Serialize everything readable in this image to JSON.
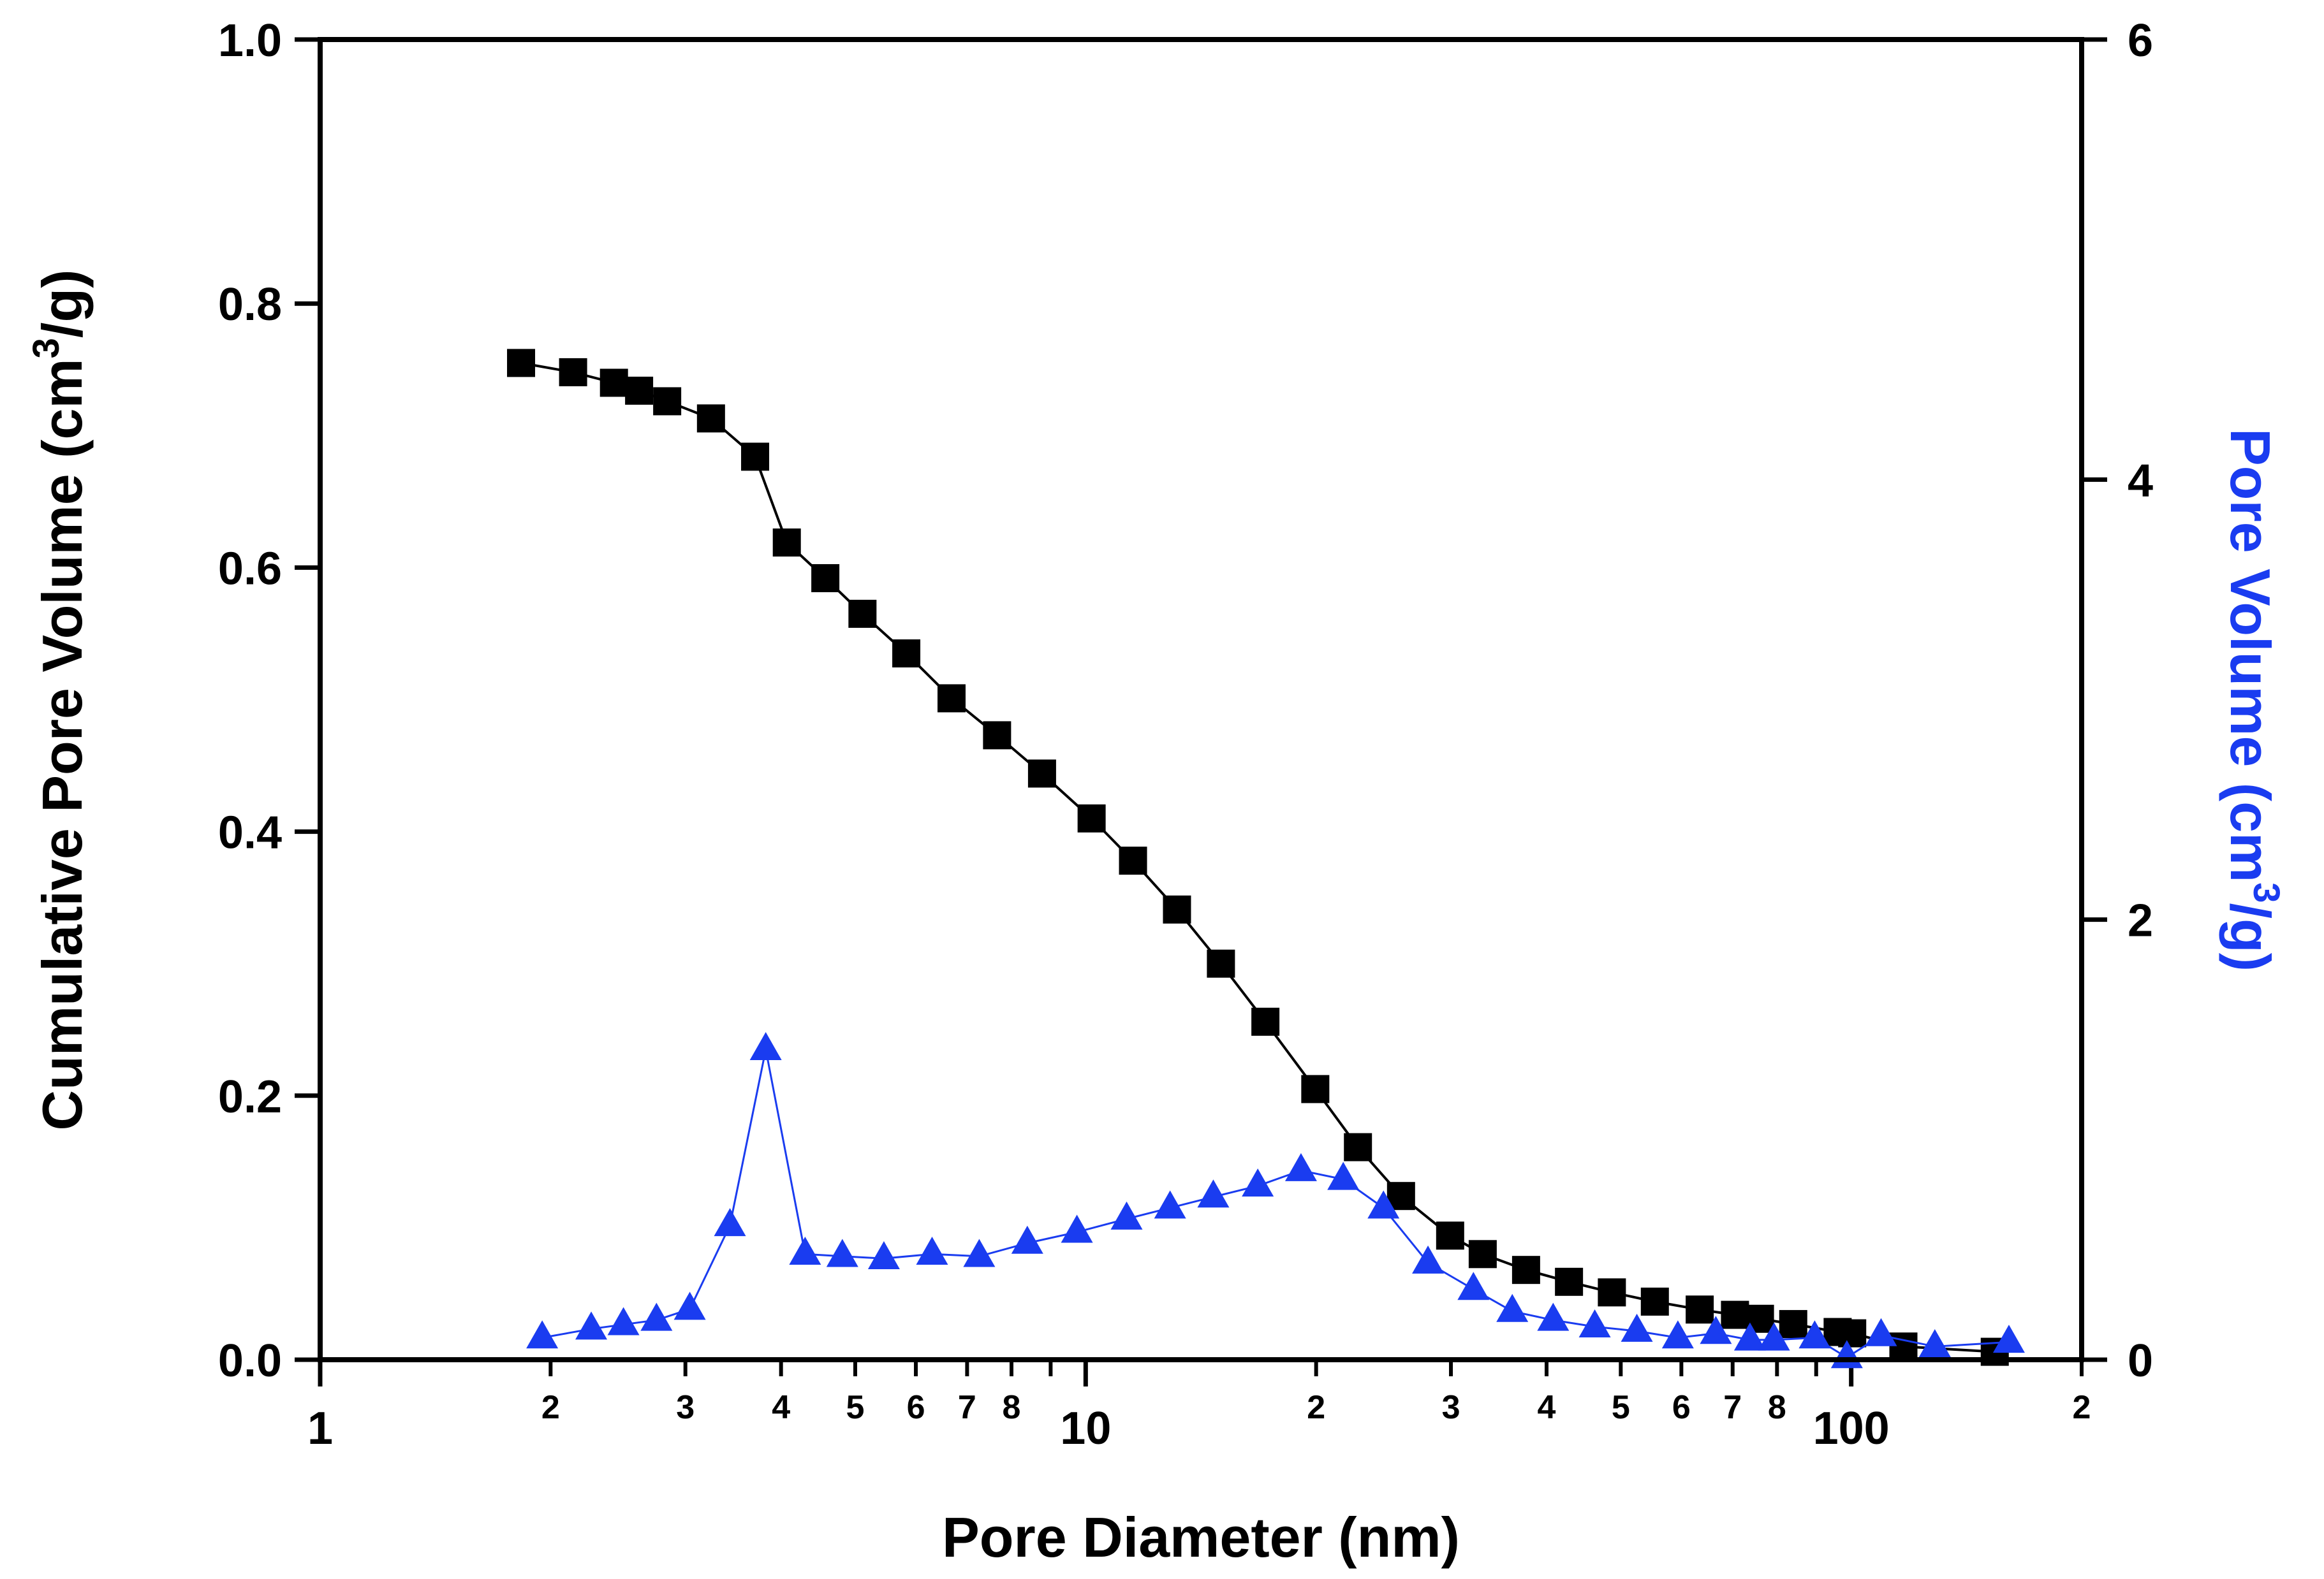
{
  "chart_data": {
    "type": "scatter",
    "x_scale": "log",
    "xlabel": "Pore Diameter (nm)",
    "xlim": [
      1,
      200
    ],
    "x_major_ticks": [
      {
        "value": 1,
        "label": "1"
      },
      {
        "value": 10,
        "label": "10"
      },
      {
        "value": 100,
        "label": "100"
      }
    ],
    "x_minor_ticks": [
      {
        "value": 2,
        "label": "2"
      },
      {
        "value": 3,
        "label": "3"
      },
      {
        "value": 4,
        "label": "4"
      },
      {
        "value": 5,
        "label": "5"
      },
      {
        "value": 6,
        "label": "6"
      },
      {
        "value": 7,
        "label": "7"
      },
      {
        "value": 8,
        "label": "8"
      },
      {
        "value": 9,
        "label": ""
      },
      {
        "value": 20,
        "label": "2"
      },
      {
        "value": 30,
        "label": "3"
      },
      {
        "value": 40,
        "label": "4"
      },
      {
        "value": 50,
        "label": "5"
      },
      {
        "value": 60,
        "label": "6"
      },
      {
        "value": 70,
        "label": "7"
      },
      {
        "value": 80,
        "label": "8"
      },
      {
        "value": 90,
        "label": ""
      },
      {
        "value": 200,
        "label": "2"
      }
    ],
    "y_left": {
      "label_main": "Cumulative Pore Volume (cm",
      "label_sup": "3",
      "label_end": "/g)",
      "ylim": [
        0,
        1.0
      ],
      "ticks": [
        "0.0",
        "0.2",
        "0.4",
        "0.6",
        "0.8",
        "1.0"
      ],
      "tick_values": [
        0,
        0.2,
        0.4,
        0.6,
        0.8,
        1.0
      ],
      "color": "#000000"
    },
    "y_right": {
      "label_main": "Pore Volume (cm",
      "label_sup": "3",
      "label_end": "/g)",
      "ylim": [
        0,
        6
      ],
      "ticks": [
        "0",
        "2",
        "4",
        "6"
      ],
      "tick_values": [
        0,
        2,
        4,
        6
      ],
      "color": "#1a3cf0"
    },
    "series": [
      {
        "name": "Cumulative Pore Volume",
        "axis": "left",
        "marker": "square",
        "color": "#000000",
        "x": [
          1.83,
          2.14,
          2.42,
          2.61,
          2.84,
          3.24,
          3.7,
          4.07,
          4.57,
          5.11,
          5.83,
          6.68,
          7.66,
          8.77,
          10.18,
          11.53,
          13.16,
          15.02,
          17.17,
          19.95,
          22.68,
          25.82,
          29.93,
          33.01,
          37.61,
          42.79,
          48.68,
          55.4,
          63.4,
          70.5,
          76.0,
          84.0,
          96.0,
          100.3,
          117.0,
          154.0
        ],
        "y": [
          0.755,
          0.748,
          0.74,
          0.734,
          0.726,
          0.713,
          0.684,
          0.619,
          0.592,
          0.565,
          0.535,
          0.501,
          0.473,
          0.444,
          0.41,
          0.378,
          0.341,
          0.3,
          0.256,
          0.205,
          0.161,
          0.124,
          0.094,
          0.08,
          0.068,
          0.059,
          0.051,
          0.044,
          0.038,
          0.034,
          0.031,
          0.027,
          0.021,
          0.02,
          0.01,
          0.006
        ]
      },
      {
        "name": "Pore Volume",
        "axis": "right",
        "marker": "triangle",
        "color": "#1a3cf0",
        "x": [
          1.95,
          2.26,
          2.49,
          2.75,
          3.04,
          3.43,
          3.82,
          4.3,
          4.81,
          5.45,
          6.3,
          7.26,
          8.39,
          9.74,
          11.31,
          12.89,
          14.68,
          16.78,
          19.11,
          21.7,
          24.49,
          28.0,
          32.1,
          36.08,
          40.8,
          46.24,
          52.48,
          59.37,
          66.55,
          73.75,
          79.28,
          89.6,
          98.7,
          109.4,
          128.6,
          160.7
        ],
        "y": [
          0.1,
          0.14,
          0.16,
          0.18,
          0.23,
          0.61,
          1.41,
          0.48,
          0.47,
          0.46,
          0.48,
          0.47,
          0.53,
          0.58,
          0.64,
          0.69,
          0.74,
          0.79,
          0.86,
          0.82,
          0.69,
          0.44,
          0.32,
          0.22,
          0.18,
          0.15,
          0.13,
          0.1,
          0.12,
          0.09,
          0.09,
          0.1,
          0.01,
          0.11,
          0.06,
          0.08
        ]
      }
    ]
  }
}
